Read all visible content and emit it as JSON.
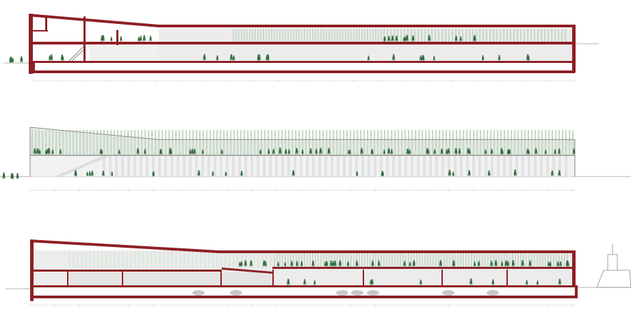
{
  "colors": {
    "background": "#ffffff",
    "slab": "#8e1f24",
    "glazing": "#e6ebe6",
    "glazing_stripe": "#c9d8c9",
    "interior_wall": "#ececec",
    "figure": "#2f6b3d",
    "ground_line": "#9a9a9a",
    "dimension_line": "#c7c7c7"
  },
  "drawings": [
    {
      "name": "section-1",
      "view": "section",
      "has_ramp": true
    },
    {
      "name": "elevation",
      "view": "elevation",
      "has_ramp": true
    },
    {
      "name": "section-2",
      "view": "section",
      "has_ship": true
    }
  ]
}
